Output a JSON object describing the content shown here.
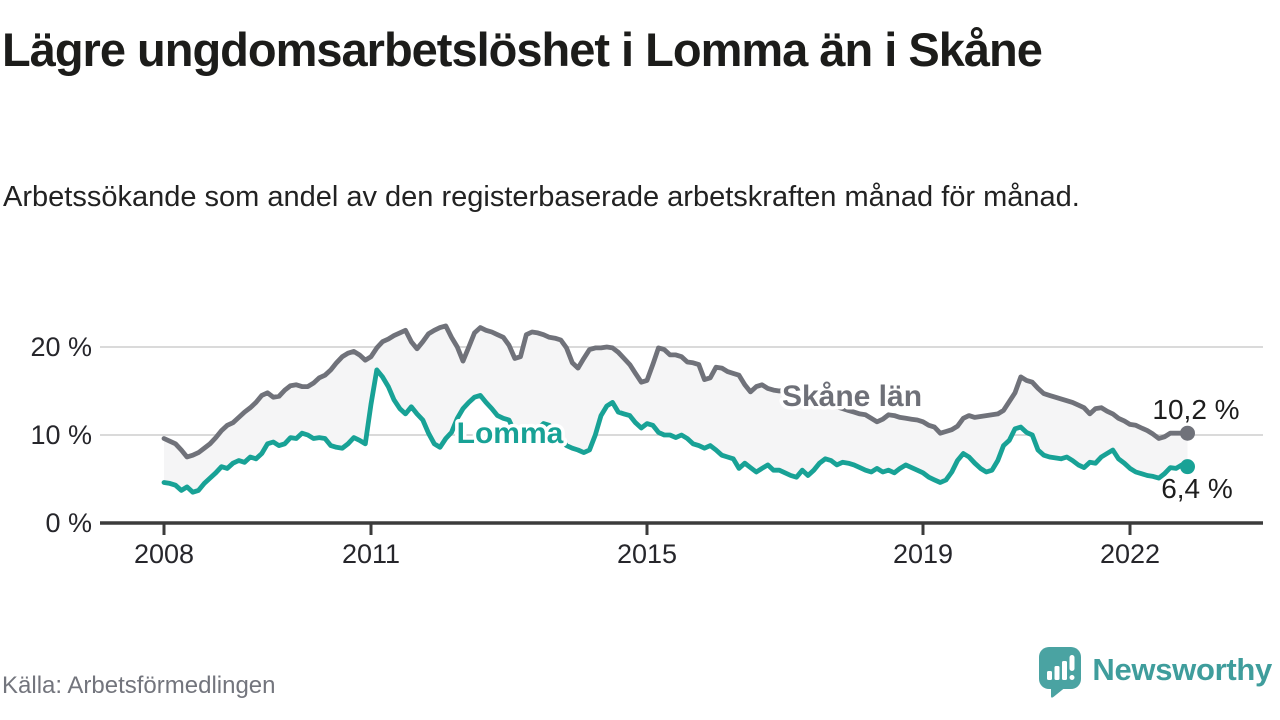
{
  "title": "Lägre ungdomsarbetslöshet i Lomma än i Skåne",
  "subtitle": "Arbetssökande som andel av den registerbaserade arbetskraften månad för månad.",
  "source": "Källa: Arbetsförmedlingen",
  "logo": {
    "text": "Newsworthy",
    "color": "#3f9d9c",
    "icon": "bar-chart-speech-bubble"
  },
  "chart_data": {
    "type": "line",
    "title": "Lägre ungdomsarbetslöshet i Lomma än i Skåne",
    "xlabel": "",
    "ylabel": "",
    "x_range": [
      "2008-01",
      "2022-11"
    ],
    "x_interval": "monthly",
    "x_tick_labels": [
      "2008",
      "2011",
      "2015",
      "2019",
      "2022"
    ],
    "y_tick_labels": [
      "20 %",
      "10 %",
      "0 %"
    ],
    "ylim": [
      0,
      24
    ],
    "grid": "horizontal",
    "band_fill": "#f5f5f6",
    "legend_position": "inline-labels",
    "series": [
      {
        "name": "Skåne län",
        "color": "#70727a",
        "end_label": "10,2 %",
        "end_value": 10.2,
        "values": [
          9.6,
          9.3,
          9.0,
          8.3,
          7.5,
          7.7,
          8.0,
          8.5,
          9.0,
          9.7,
          10.5,
          11.1,
          11.4,
          12.0,
          12.6,
          13.1,
          13.7,
          14.5,
          14.8,
          14.3,
          14.4,
          15.1,
          15.6,
          15.7,
          15.5,
          15.5,
          15.9,
          16.5,
          16.8,
          17.4,
          18.2,
          18.9,
          19.3,
          19.5,
          19.1,
          18.5,
          18.9,
          19.9,
          20.6,
          20.9,
          21.3,
          21.6,
          21.9,
          20.6,
          19.8,
          20.6,
          21.5,
          21.9,
          22.2,
          22.4,
          21.1,
          20.0,
          18.4,
          20.0,
          21.6,
          22.2,
          21.9,
          21.7,
          21.4,
          21.1,
          20.2,
          18.7,
          18.9,
          21.4,
          21.7,
          21.6,
          21.4,
          21.1,
          21.0,
          20.8,
          19.9,
          18.2,
          17.6,
          18.7,
          19.7,
          19.9,
          19.9,
          20.0,
          19.9,
          19.4,
          18.7,
          18.0,
          17.0,
          16.0,
          16.2,
          18.0,
          19.9,
          19.7,
          19.1,
          19.1,
          18.9,
          18.3,
          18.2,
          18.0,
          16.3,
          16.5,
          17.7,
          17.6,
          17.2,
          17.0,
          16.8,
          15.7,
          14.9,
          15.5,
          15.7,
          15.3,
          15.1,
          15.0,
          15.1,
          14.9,
          14.6,
          14.4,
          14.2,
          14.0,
          13.8,
          13.6,
          13.4,
          13.2,
          13.0,
          12.8,
          12.6,
          12.4,
          12.3,
          11.9,
          11.5,
          11.8,
          12.3,
          12.2,
          12.0,
          11.9,
          11.8,
          11.7,
          11.5,
          11.1,
          10.9,
          10.2,
          10.4,
          10.6,
          11.0,
          11.9,
          12.2,
          12.0,
          12.1,
          12.2,
          12.3,
          12.4,
          12.8,
          13.8,
          14.8,
          16.6,
          16.2,
          16.0,
          15.3,
          14.7,
          14.5,
          14.3,
          14.1,
          13.9,
          13.7,
          13.4,
          13.1,
          12.4,
          13.0,
          13.1,
          12.7,
          12.4,
          11.9,
          11.6,
          11.2,
          11.1,
          10.8,
          10.5,
          10.1,
          9.6,
          9.8,
          10.2,
          10.2,
          10.2,
          10.2
        ]
      },
      {
        "name": "Lomma",
        "color": "#18a296",
        "end_label": "6,4 %",
        "end_value": 6.4,
        "values": [
          4.6,
          4.5,
          4.3,
          3.7,
          4.1,
          3.5,
          3.7,
          4.5,
          5.1,
          5.7,
          6.4,
          6.2,
          6.8,
          7.1,
          6.9,
          7.5,
          7.3,
          7.9,
          9.0,
          9.2,
          8.8,
          9.0,
          9.7,
          9.6,
          10.2,
          10.0,
          9.6,
          9.7,
          9.6,
          8.8,
          8.6,
          8.5,
          9.0,
          9.7,
          9.4,
          9.0,
          13.5,
          17.4,
          16.6,
          15.5,
          14.0,
          13.0,
          12.4,
          13.2,
          12.4,
          11.7,
          10.2,
          9.0,
          8.6,
          9.6,
          10.3,
          11.9,
          13.0,
          13.7,
          14.3,
          14.5,
          13.7,
          13.0,
          12.2,
          11.9,
          11.7,
          10.3,
          10.0,
          10.3,
          10.5,
          10.7,
          11.3,
          11.1,
          10.3,
          9.6,
          8.8,
          8.5,
          8.3,
          8.0,
          8.3,
          10.0,
          12.2,
          13.3,
          13.7,
          12.6,
          12.4,
          12.2,
          11.4,
          10.8,
          11.3,
          11.1,
          10.3,
          10.0,
          10.0,
          9.7,
          10.0,
          9.6,
          9.0,
          8.8,
          8.5,
          8.8,
          8.3,
          7.7,
          7.5,
          7.3,
          6.2,
          6.8,
          6.3,
          5.8,
          6.2,
          6.6,
          6.0,
          6.0,
          5.7,
          5.4,
          5.2,
          6.0,
          5.4,
          6.0,
          6.8,
          7.3,
          7.1,
          6.6,
          6.9,
          6.8,
          6.6,
          6.3,
          6.0,
          5.8,
          6.2,
          5.8,
          6.0,
          5.7,
          6.2,
          6.6,
          6.3,
          6.0,
          5.7,
          5.2,
          4.9,
          4.6,
          4.9,
          5.8,
          7.1,
          7.9,
          7.5,
          6.8,
          6.2,
          5.8,
          6.0,
          7.1,
          8.8,
          9.4,
          10.7,
          10.9,
          10.3,
          10.0,
          8.3,
          7.7,
          7.5,
          7.4,
          7.3,
          7.5,
          7.1,
          6.6,
          6.3,
          6.9,
          6.8,
          7.5,
          7.9,
          8.3,
          7.3,
          6.8,
          6.2,
          5.8,
          5.6,
          5.4,
          5.3,
          5.1,
          5.6,
          6.3,
          6.2,
          6.6,
          6.4
        ]
      }
    ]
  }
}
